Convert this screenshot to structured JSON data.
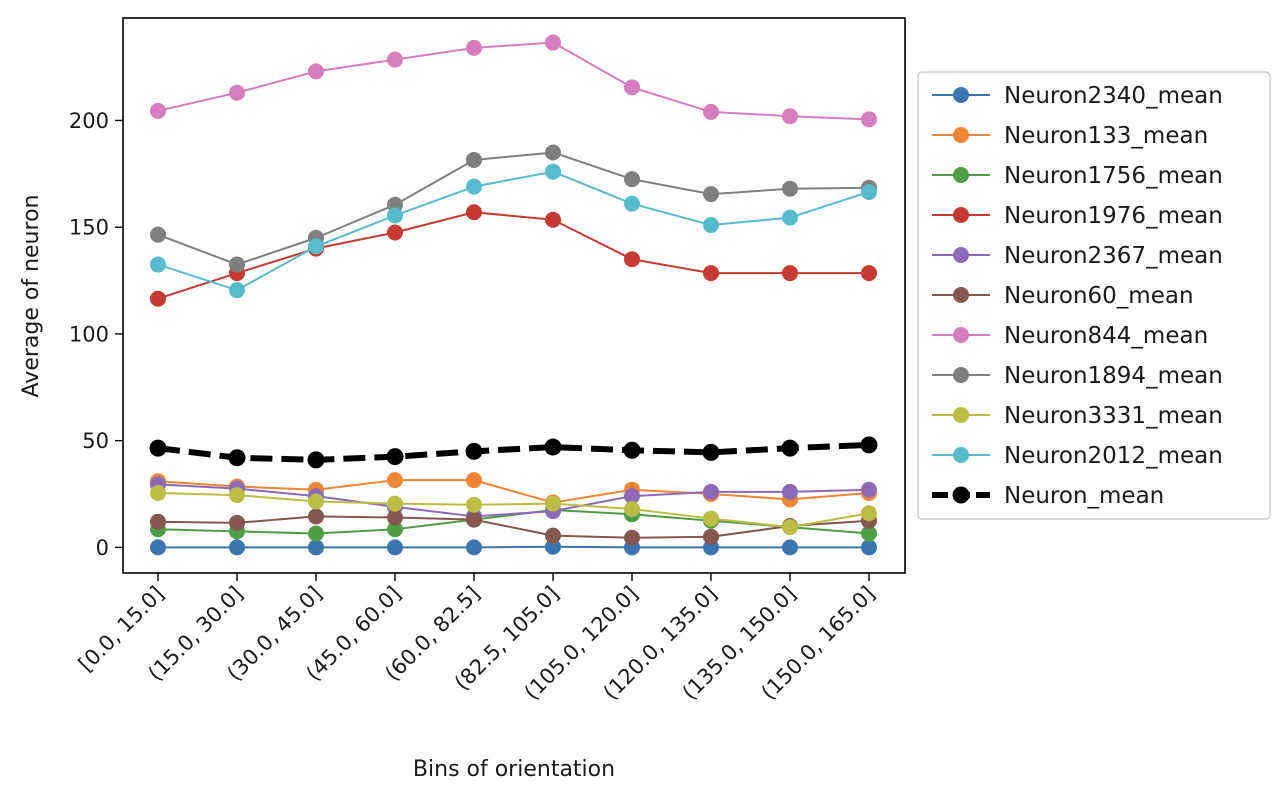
{
  "chart_data": {
    "type": "line",
    "title": "",
    "xlabel": "Bins of orientation",
    "ylabel": "Average of neuron",
    "ylim": [
      -12,
      248
    ],
    "yticks": [
      0,
      50,
      100,
      150,
      200
    ],
    "grid": false,
    "legend_position": "right, outside plot area",
    "categories": [
      "[0.0,  15.0]",
      "(15.0, 30.0]",
      "(30.0, 45.0]",
      "(45.0, 60.0]",
      "(60.0, 82.5]",
      "(82.5, 105.0]",
      "(105.0, 120.0]",
      "(120.0, 135.0]",
      "(135.0, 150.0]",
      "(150.0, 165.0]"
    ],
    "series": [
      {
        "name": "Neuron2340_mean",
        "color": "#3a75b0",
        "values": [
          0,
          0,
          0,
          0,
          0,
          0.3,
          0,
          0,
          0,
          0
        ]
      },
      {
        "name": "Neuron133_mean",
        "color": "#ef8636",
        "values": [
          31,
          28.5,
          27,
          31.5,
          31.5,
          21,
          27,
          25,
          22.5,
          25.5
        ]
      },
      {
        "name": "Neuron1756_mean",
        "color": "#4f9e45",
        "values": [
          8.5,
          7.5,
          6.5,
          8.5,
          13,
          17.5,
          15.5,
          12.5,
          9.5,
          6.5
        ]
      },
      {
        "name": "Neuron1976_mean",
        "color": "#c53a32",
        "values": [
          116.5,
          128.5,
          140,
          147.5,
          157,
          153.5,
          135,
          128.5,
          128.5,
          128.5
        ]
      },
      {
        "name": "Neuron2367_mean",
        "color": "#8d69b8",
        "values": [
          29.5,
          27.5,
          24,
          19,
          14.5,
          17,
          24,
          26,
          26,
          27
        ]
      },
      {
        "name": "Neuron60_mean",
        "color": "#84584e",
        "values": [
          12,
          11.5,
          14.5,
          14,
          13,
          5.5,
          4.5,
          5,
          10,
          12.5
        ]
      },
      {
        "name": "Neuron844_mean",
        "color": "#d57dbe",
        "values": [
          204.5,
          213,
          223,
          228.5,
          234,
          236.5,
          215.5,
          204,
          202,
          200.5
        ]
      },
      {
        "name": "Neuron1894_mean",
        "color": "#7f7f7f",
        "values": [
          146.5,
          132.5,
          145,
          160.5,
          181.5,
          185,
          172.5,
          165.5,
          168,
          168.5
        ]
      },
      {
        "name": "Neuron3331_mean",
        "color": "#bcbd45",
        "values": [
          25.5,
          24.5,
          21.5,
          20.5,
          20,
          20.5,
          18,
          13.5,
          9.5,
          16
        ]
      },
      {
        "name": "Neuron2012_mean",
        "color": "#58bbcc",
        "values": [
          132.5,
          120.5,
          141,
          155.5,
          169,
          176,
          161,
          151,
          154.5,
          166.5
        ]
      },
      {
        "name": "Neuron_mean",
        "color": "#000000",
        "dashed": true,
        "values": [
          46.5,
          42,
          41,
          42.5,
          45,
          47,
          45.5,
          44.5,
          46.5,
          48
        ]
      }
    ]
  }
}
